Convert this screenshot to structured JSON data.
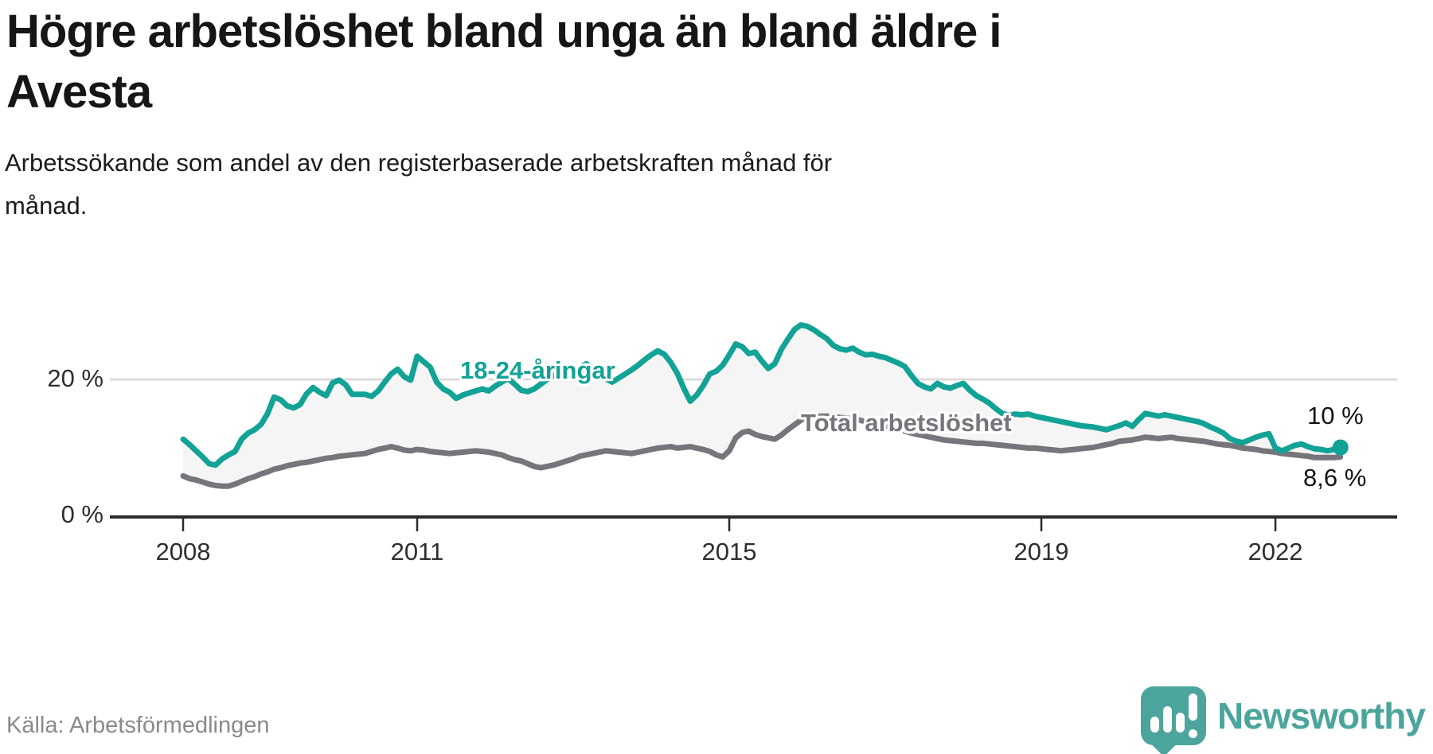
{
  "header": {
    "title": "Högre arbetslöshet bland unga än bland äldre i Avesta",
    "title_lines": [
      "Högre arbetslöshet bland unga än bland äldre i",
      "Avesta"
    ],
    "subtitle_lines": [
      "Arbetssökande som andel av den registerbaserade arbetskraften månad för",
      "månad."
    ]
  },
  "footer": {
    "source": "Källa: Arbetsförmedlingen",
    "logo_text": "Newsworthy"
  },
  "colors": {
    "young": "#12a296",
    "total": "#75757b",
    "fill_between": "#f5f5f6",
    "gridline": "#dcdcdc",
    "axis": "#2b2b2b",
    "end_dot": "#12a296",
    "logo_teal": "#4ba59d"
  },
  "chart_data": {
    "type": "line",
    "title": "Högre arbetslöshet bland unga än bland äldre i Avesta",
    "subtitle": "Arbetssökande som andel av den registerbaserade arbetskraften månad för månad.",
    "x_start": "2008-01",
    "x_freq": "monthly",
    "x_end": "2022-11",
    "ylim": [
      0,
      36
    ],
    "grid": "single-horizontal-at-20",
    "legend_position": "inline-labels",
    "y_ticks": [
      {
        "label": "0 %",
        "value": 0
      },
      {
        "label": "20 %",
        "value": 20
      }
    ],
    "x_ticks": [
      {
        "label": "2008",
        "month_index": 0
      },
      {
        "label": "2011",
        "month_index": 36
      },
      {
        "label": "2015",
        "month_index": 84
      },
      {
        "label": "2019",
        "month_index": 132
      },
      {
        "label": "2022",
        "month_index": 168
      }
    ],
    "end_labels": {
      "young": "10 %",
      "total": "8,6 %"
    },
    "series": [
      {
        "name": "18-24-åringar",
        "color": "#12a296",
        "values": [
          11.2,
          10.4,
          9.5,
          8.6,
          7.6,
          7.4,
          8.3,
          8.9,
          9.4,
          11.2,
          12.1,
          12.6,
          13.4,
          15.0,
          17.4,
          17.0,
          16.1,
          15.8,
          16.3,
          17.9,
          18.8,
          18.1,
          17.6,
          19.5,
          19.9,
          19.2,
          17.8,
          17.8,
          17.8,
          17.5,
          18.3,
          19.6,
          20.8,
          21.5,
          20.4,
          19.9,
          23.4,
          22.6,
          21.8,
          19.6,
          18.6,
          18.1,
          17.2,
          17.7,
          18.0,
          18.3,
          18.6,
          18.3,
          19.0,
          19.6,
          20.1,
          19.3,
          18.4,
          18.2,
          18.6,
          19.3,
          20.0,
          20.6,
          21.0,
          20.6,
          21.2,
          21.8,
          22.3,
          21.6,
          20.8,
          20.1,
          19.6,
          20.2,
          20.8,
          21.4,
          22.1,
          22.9,
          23.6,
          24.2,
          23.7,
          22.5,
          20.9,
          18.7,
          16.8,
          17.7,
          19.1,
          20.8,
          21.2,
          22.1,
          23.6,
          25.2,
          24.8,
          23.8,
          24.0,
          22.7,
          21.6,
          22.3,
          24.4,
          25.9,
          27.3,
          28.0,
          27.8,
          27.3,
          26.6,
          26.0,
          25.0,
          24.5,
          24.3,
          24.6,
          24.0,
          23.6,
          23.7,
          23.4,
          23.2,
          22.8,
          22.4,
          21.9,
          20.6,
          19.4,
          18.9,
          18.6,
          19.4,
          18.9,
          18.7,
          19.1,
          19.4,
          18.4,
          17.6,
          17.1,
          16.5,
          15.7,
          15.0,
          14.7,
          14.9,
          14.8,
          14.9,
          14.6,
          14.4,
          14.2,
          14.0,
          13.8,
          13.6,
          13.4,
          13.2,
          13.1,
          13.0,
          12.8,
          12.6,
          12.9,
          13.2,
          13.6,
          13.1,
          14.1,
          15.0,
          14.8,
          14.6,
          14.8,
          14.6,
          14.4,
          14.2,
          14.0,
          13.8,
          13.5,
          13.0,
          12.6,
          12.1,
          11.3,
          10.9,
          10.7,
          11.1,
          11.5,
          11.8,
          12.0,
          9.9,
          9.5,
          9.9,
          10.3,
          10.5,
          10.1,
          9.8,
          9.7,
          9.5,
          9.7,
          10.0
        ],
        "last_value_label": "10 %"
      },
      {
        "name": "Total arbetslöshet",
        "color": "#75757b",
        "values": [
          5.8,
          5.4,
          5.2,
          4.9,
          4.6,
          4.4,
          4.3,
          4.3,
          4.6,
          5.0,
          5.4,
          5.7,
          6.1,
          6.4,
          6.8,
          7.0,
          7.3,
          7.5,
          7.7,
          7.8,
          8.0,
          8.2,
          8.4,
          8.5,
          8.7,
          8.8,
          8.9,
          9.0,
          9.1,
          9.4,
          9.7,
          9.9,
          10.1,
          9.9,
          9.6,
          9.5,
          9.7,
          9.6,
          9.4,
          9.3,
          9.2,
          9.1,
          9.2,
          9.3,
          9.4,
          9.5,
          9.4,
          9.3,
          9.1,
          8.9,
          8.5,
          8.2,
          8.0,
          7.6,
          7.2,
          7.0,
          7.2,
          7.4,
          7.7,
          8.0,
          8.3,
          8.7,
          8.9,
          9.1,
          9.3,
          9.5,
          9.4,
          9.3,
          9.2,
          9.1,
          9.3,
          9.5,
          9.7,
          9.9,
          10.0,
          10.1,
          9.9,
          10.0,
          10.1,
          9.9,
          9.7,
          9.4,
          8.9,
          8.6,
          9.5,
          11.4,
          12.2,
          12.4,
          11.9,
          11.6,
          11.4,
          11.2,
          11.8,
          12.6,
          13.3,
          14.0,
          14.3,
          14.5,
          14.6,
          14.6,
          14.5,
          14.4,
          14.3,
          14.2,
          14.0,
          13.8,
          13.6,
          13.4,
          13.2,
          13.0,
          12.7,
          12.4,
          12.1,
          11.9,
          11.7,
          11.5,
          11.3,
          11.1,
          11.0,
          10.9,
          10.8,
          10.7,
          10.6,
          10.6,
          10.5,
          10.4,
          10.3,
          10.2,
          10.1,
          10.0,
          9.9,
          9.9,
          9.8,
          9.7,
          9.6,
          9.5,
          9.6,
          9.7,
          9.8,
          9.9,
          10.0,
          10.2,
          10.4,
          10.6,
          10.9,
          11.0,
          11.1,
          11.3,
          11.5,
          11.4,
          11.3,
          11.4,
          11.5,
          11.3,
          11.2,
          11.1,
          11.0,
          10.9,
          10.7,
          10.5,
          10.4,
          10.3,
          10.1,
          9.9,
          9.8,
          9.7,
          9.5,
          9.4,
          9.3,
          9.1,
          9.0,
          8.9,
          8.8,
          8.7,
          8.5,
          8.5,
          8.5,
          8.5,
          8.6
        ],
        "last_value_label": "8,6 %"
      }
    ]
  }
}
